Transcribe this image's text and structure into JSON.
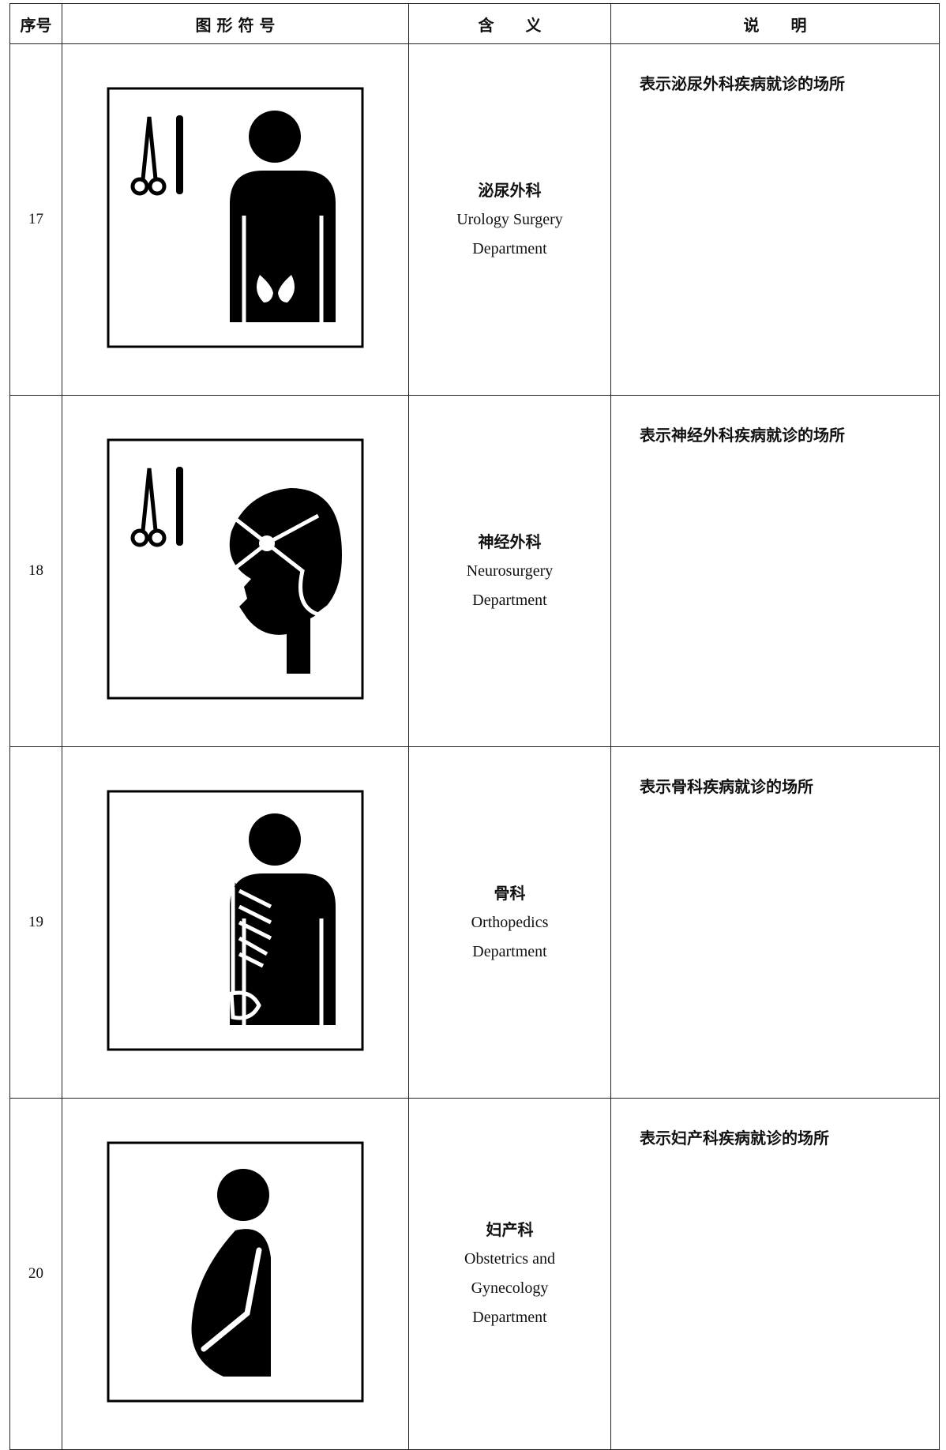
{
  "table": {
    "header": [
      "序号",
      "图 形 符 号",
      "含　　义",
      "说　　明"
    ],
    "rows": [
      {
        "no": "17",
        "meaning": [
          "泌尿外科",
          "Urology Surgery",
          "Department"
        ],
        "description": "表示泌尿外科疾病就诊的场所"
      },
      {
        "no": "18",
        "meaning": [
          "神经外科",
          "Neurosurgery",
          "Department"
        ],
        "description": "表示神经外科疾病就诊的场所"
      },
      {
        "no": "19",
        "meaning": [
          "骨科",
          "Orthopedics",
          "Department"
        ],
        "description": "表示骨科疾病就诊的场所"
      },
      {
        "no": "20",
        "meaning": [
          "妇产科",
          "Obstetrics and",
          "Gynecology",
          "Department"
        ],
        "description": "表示妇产科疾病就诊的场所"
      }
    ]
  }
}
